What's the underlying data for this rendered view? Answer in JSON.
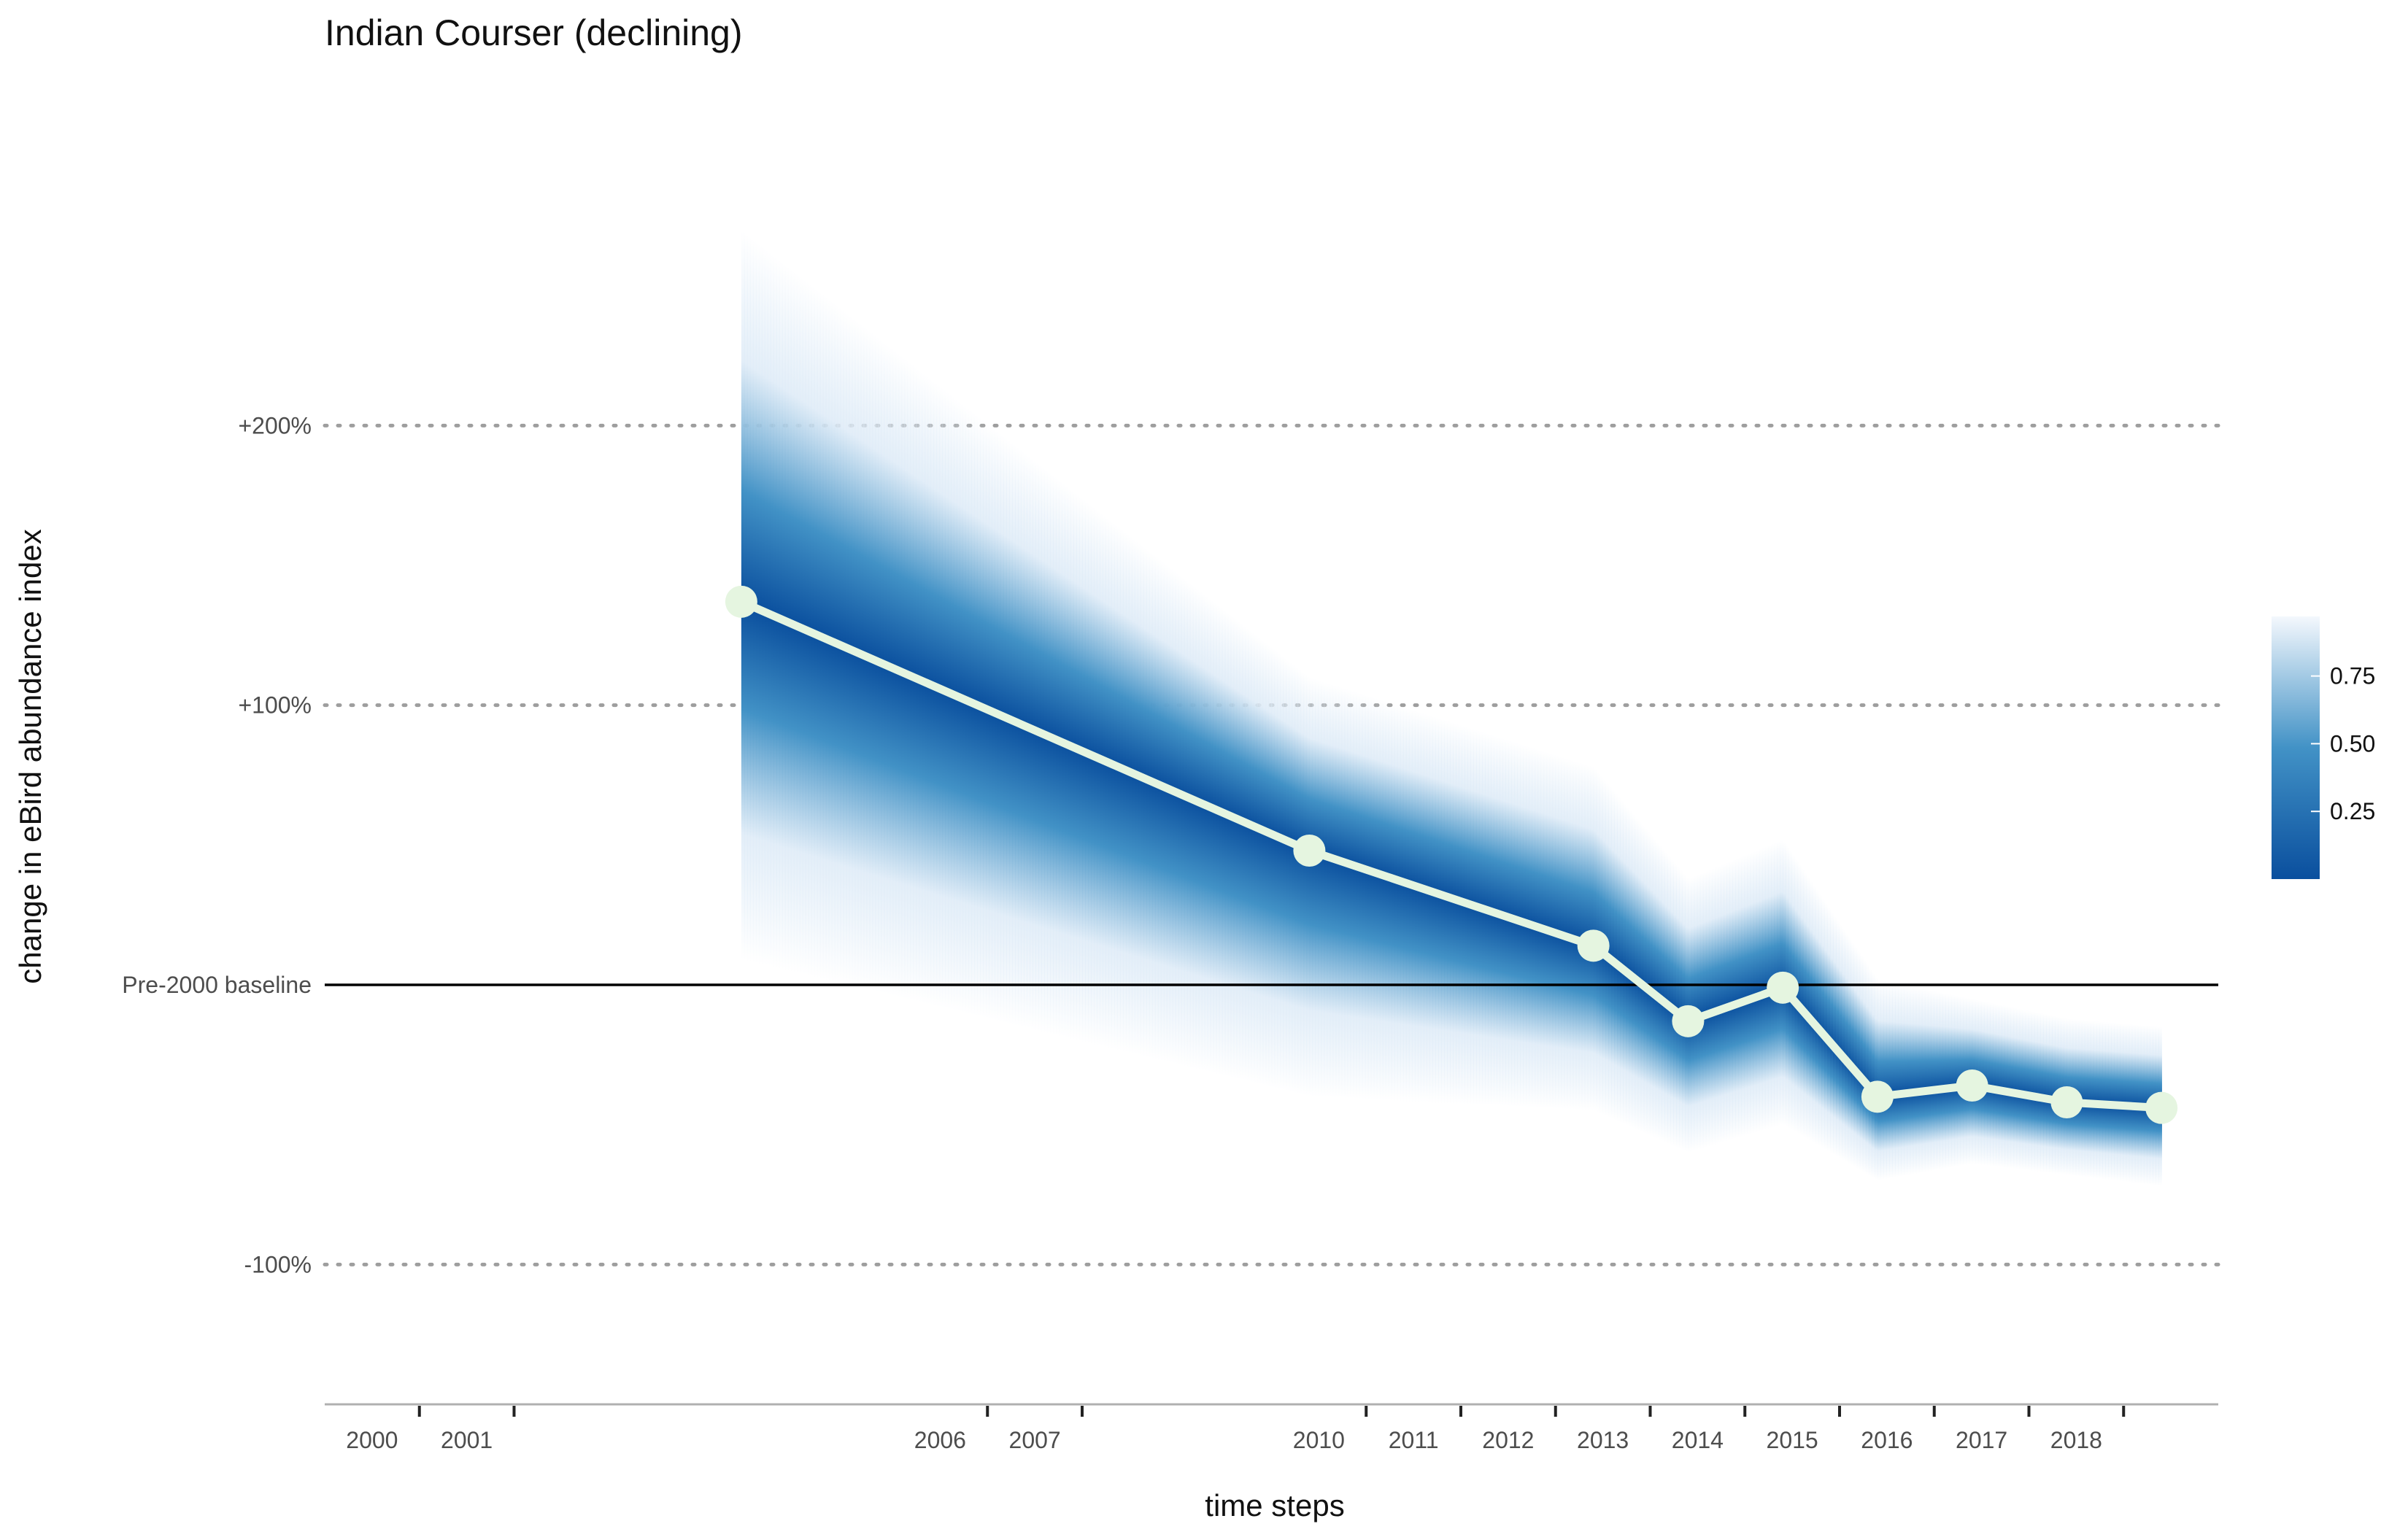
{
  "chart_data": {
    "type": "line",
    "title": "Indian Courser (declining)",
    "xlabel": "time steps",
    "ylabel": "change in eBird abundance index",
    "ylim": [
      -150,
      300
    ],
    "y_ticks": [
      {
        "value": 200,
        "label": "+200%"
      },
      {
        "value": 100,
        "label": "+100%"
      },
      {
        "value": 0,
        "label": "Pre-2000 baseline"
      },
      {
        "value": -100,
        "label": "-100%"
      }
    ],
    "x_ticks": [
      {
        "start": 2000,
        "end": 2001,
        "label": "2000"
      },
      {
        "start": 2001,
        "end": 2002,
        "label": "2001"
      },
      {
        "start": 2006,
        "end": 2007,
        "label": "2006"
      },
      {
        "start": 2007,
        "end": 2008,
        "label": "2007"
      },
      {
        "start": 2010,
        "end": 2011,
        "label": "2010"
      },
      {
        "start": 2011,
        "end": 2012,
        "label": "2011"
      },
      {
        "start": 2012,
        "end": 2013,
        "label": "2012"
      },
      {
        "start": 2013,
        "end": 2014,
        "label": "2013"
      },
      {
        "start": 2014,
        "end": 2015,
        "label": "2014"
      },
      {
        "start": 2015,
        "end": 2016,
        "label": "2015"
      },
      {
        "start": 2016,
        "end": 2017,
        "label": "2016"
      },
      {
        "start": 2017,
        "end": 2018,
        "label": "2017"
      },
      {
        "start": 2018,
        "end": 2019,
        "label": "2018"
      }
    ],
    "x_range": [
      2000,
      2020
    ],
    "series": [
      {
        "points": [
          {
            "x": 2004.4,
            "y": 137,
            "lower": 9,
            "upper": 270
          },
          {
            "x": 2010.4,
            "y": 48,
            "lower": -40,
            "upper": 110
          },
          {
            "x": 2013.4,
            "y": 14,
            "lower": -45,
            "upper": 78
          },
          {
            "x": 2014.4,
            "y": -13,
            "lower": -60,
            "upper": 38
          },
          {
            "x": 2015.4,
            "y": -1,
            "lower": -50,
            "upper": 52
          },
          {
            "x": 2016.4,
            "y": -40,
            "lower": -70,
            "upper": 2
          },
          {
            "x": 2017.4,
            "y": -36,
            "lower": -64,
            "upper": -5
          },
          {
            "x": 2018.4,
            "y": -42,
            "lower": -68,
            "upper": -12
          },
          {
            "x": 2019.4,
            "y": -44,
            "lower": -72,
            "upper": -15
          }
        ]
      }
    ],
    "legend": {
      "placement": "right",
      "ticks": [
        {
          "value": 0.25,
          "label": "0.25"
        },
        {
          "value": 0.5,
          "label": "0.50"
        },
        {
          "value": 0.75,
          "label": "0.75"
        }
      ],
      "range": [
        0,
        0.97
      ]
    },
    "colors": {
      "band_dark": "#0a4f9e",
      "band_mid": "#4292c6",
      "band_light": "#deebf7",
      "line": "#e5f5e0",
      "baseline": "#000000",
      "grid": "#9e9e9e"
    }
  }
}
